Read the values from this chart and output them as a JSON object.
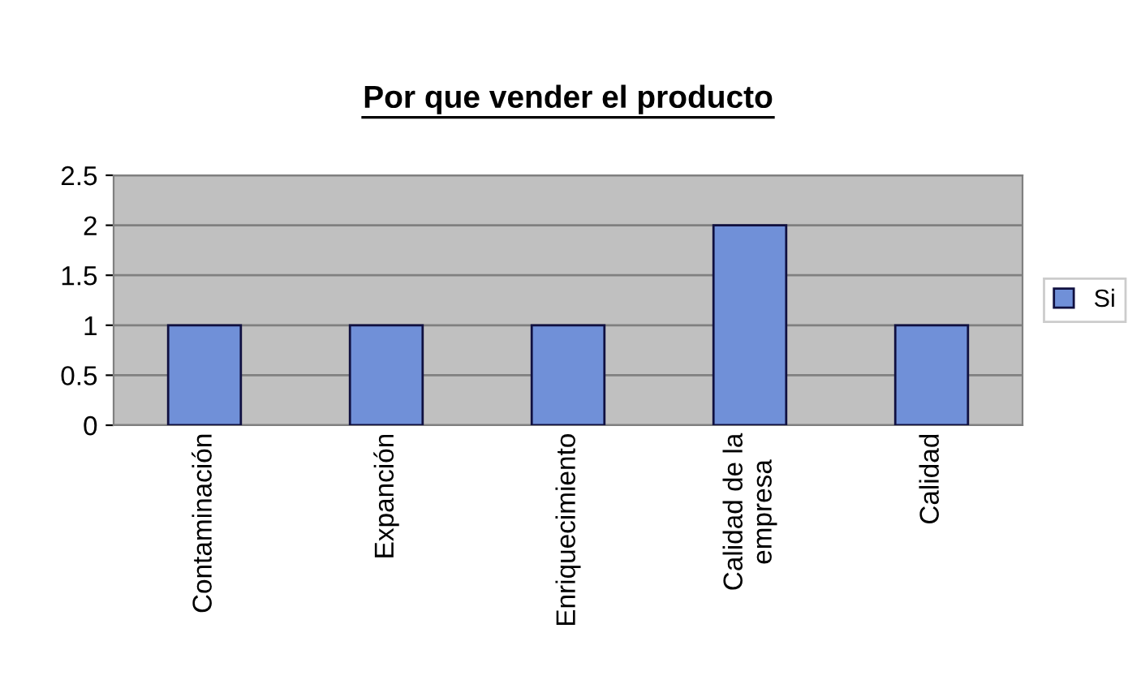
{
  "chart_data": {
    "type": "bar",
    "title": "Por que vender el producto",
    "categories": [
      "Contaminación",
      "Expanción",
      "Enriquecimiento",
      "Calidad de la\nempresa",
      "Calidad"
    ],
    "series": [
      {
        "name": "Si",
        "color": "#7090d8",
        "values": [
          1,
          1,
          1,
          2,
          1
        ]
      }
    ],
    "ylim": [
      0,
      2.5
    ],
    "yticks": [
      0,
      0.5,
      1,
      1.5,
      2,
      2.5
    ],
    "grid": "y",
    "legend": "right"
  }
}
